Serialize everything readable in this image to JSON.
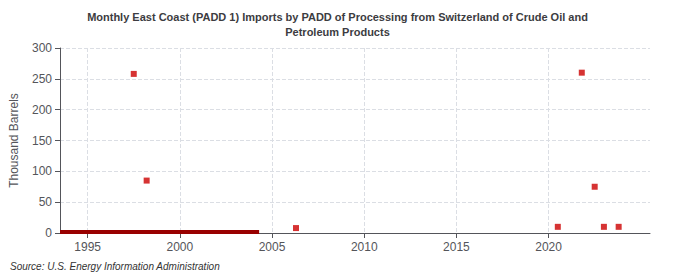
{
  "chart_data": {
    "type": "scatter",
    "title": "Monthly East Coast (PADD 1) Imports by PADD of Processing from Switzerland of Crude Oil and\nPetroleum Products",
    "ylabel": "Thousand Barrels",
    "annotations": [
      "Source: U.S. Energy Information Administration"
    ],
    "xlim": [
      1993.5,
      2025.5
    ],
    "ylim": [
      0,
      300
    ],
    "xticks": [
      1995,
      2000,
      2005,
      2010,
      2015,
      2020
    ],
    "yticks": [
      0,
      50,
      100,
      150,
      200,
      250,
      300
    ],
    "grid": true,
    "series": [
      {
        "type": "line",
        "color": "#990000",
        "line_style": "solid",
        "x": [
          1993.5,
          2004.3
        ],
        "values": [
          1.5,
          1.5
        ]
      },
      {
        "type": "scatter",
        "color": "#cc0000",
        "marker": "square",
        "x": [
          1997.5,
          1998.2,
          2006.3,
          2020.5,
          2021.8,
          2022.5,
          2023.0,
          2023.8
        ],
        "values": [
          258,
          85,
          8,
          10,
          260,
          75,
          10,
          10
        ]
      }
    ]
  }
}
